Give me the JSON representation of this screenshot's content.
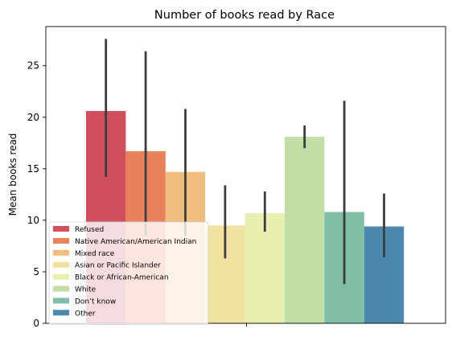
{
  "chart_data": {
    "type": "bar",
    "title": "Number of books read by Race",
    "xlabel": "",
    "ylabel": "Mean books read",
    "ylim": [
      0,
      28.8
    ],
    "yticks": [
      0,
      5,
      10,
      15,
      20,
      25
    ],
    "grid": false,
    "legend_position": "lower-left",
    "series": [
      {
        "name": "Refused",
        "value": 20.6,
        "ci": [
          14.2,
          27.6
        ],
        "color": "#cf4f5d"
      },
      {
        "name": "Native American/American Indian",
        "value": 16.7,
        "ci": [
          8.5,
          26.4
        ],
        "color": "#e8825c"
      },
      {
        "name": "Mixed race",
        "value": 14.7,
        "ci": [
          8.5,
          20.8
        ],
        "color": "#efbd7e"
      },
      {
        "name": "Asian or Pacific Islander",
        "value": 9.5,
        "ci": [
          6.3,
          13.4
        ],
        "color": "#f2e2a2"
      },
      {
        "name": "Black or African-American",
        "value": 10.7,
        "ci": [
          8.9,
          12.8
        ],
        "color": "#e9eeb1"
      },
      {
        "name": "White",
        "value": 18.1,
        "ci": [
          17.0,
          19.2
        ],
        "color": "#c2dea6"
      },
      {
        "name": "Don’t know",
        "value": 10.8,
        "ci": [
          3.8,
          21.6
        ],
        "color": "#80bfa6"
      },
      {
        "name": "Other",
        "value": 9.4,
        "ci": [
          6.4,
          12.6
        ],
        "color": "#4a88ae"
      }
    ]
  }
}
